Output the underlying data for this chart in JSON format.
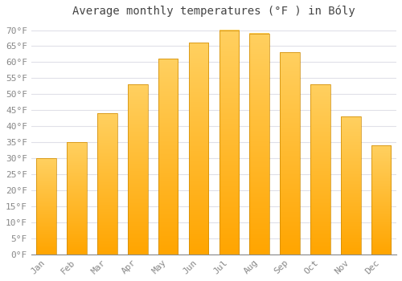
{
  "title": "Average monthly temperatures (°F ) in Bóly",
  "months": [
    "Jan",
    "Feb",
    "Mar",
    "Apr",
    "May",
    "Jun",
    "Jul",
    "Aug",
    "Sep",
    "Oct",
    "Nov",
    "Dec"
  ],
  "values": [
    30,
    35,
    44,
    53,
    61,
    66,
    70,
    69,
    63,
    53,
    43,
    34
  ],
  "bar_color_main": "#FFA500",
  "bar_color_light": "#FFD060",
  "ylim": [
    0,
    72
  ],
  "yticks": [
    0,
    5,
    10,
    15,
    20,
    25,
    30,
    35,
    40,
    45,
    50,
    55,
    60,
    65,
    70
  ],
  "ytick_labels": [
    "0°F",
    "5°F",
    "10°F",
    "15°F",
    "20°F",
    "25°F",
    "30°F",
    "35°F",
    "40°F",
    "45°F",
    "50°F",
    "55°F",
    "60°F",
    "65°F",
    "70°F"
  ],
  "background_color": "#FFFFFF",
  "grid_color": "#E0E0E8",
  "title_fontsize": 10,
  "tick_fontsize": 8,
  "title_color": "#444444",
  "tick_color": "#888888",
  "bar_edge_color": "#CC8800",
  "bar_edge_width": 0.5
}
